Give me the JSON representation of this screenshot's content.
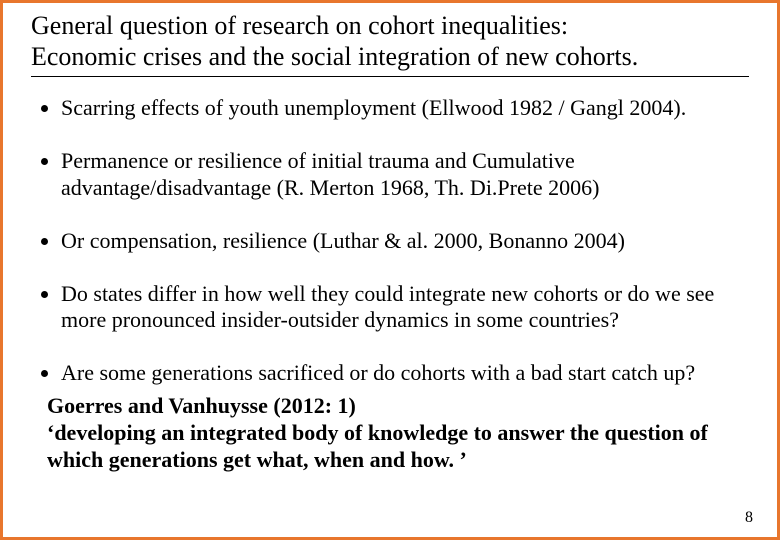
{
  "slide": {
    "border_color": "#e8762d",
    "background_color": "#ffffff",
    "text_color": "#000000",
    "font_family": "Times New Roman",
    "title_line1": "General question of research on cohort inequalities:",
    "title_line2": "Economic crises and the social integration of new cohorts.",
    "bullets": [
      "Scarring effects of youth unemployment (Ellwood 1982 / Gangl 2004).",
      "Permanence or resilience of initial trauma and Cumulative advantage/disadvantage  (R. Merton 1968, Th. Di.Prete 2006)",
      "Or compensation, resilience (Luthar & al. 2000, Bonanno 2004)",
      "Do states differ in how well they could integrate new cohorts or do we see more pronounced insider-outsider dynamics in some countries?",
      "Are some generations sacrificed or do cohorts with a bad start catch up?"
    ],
    "sub_line1": "Goerres and Vanhuysse (2012: 1)",
    "sub_line2": "‘developing an integrated body of knowledge to answer the question of which generations get what, when and how. ’",
    "page_number": "8"
  }
}
